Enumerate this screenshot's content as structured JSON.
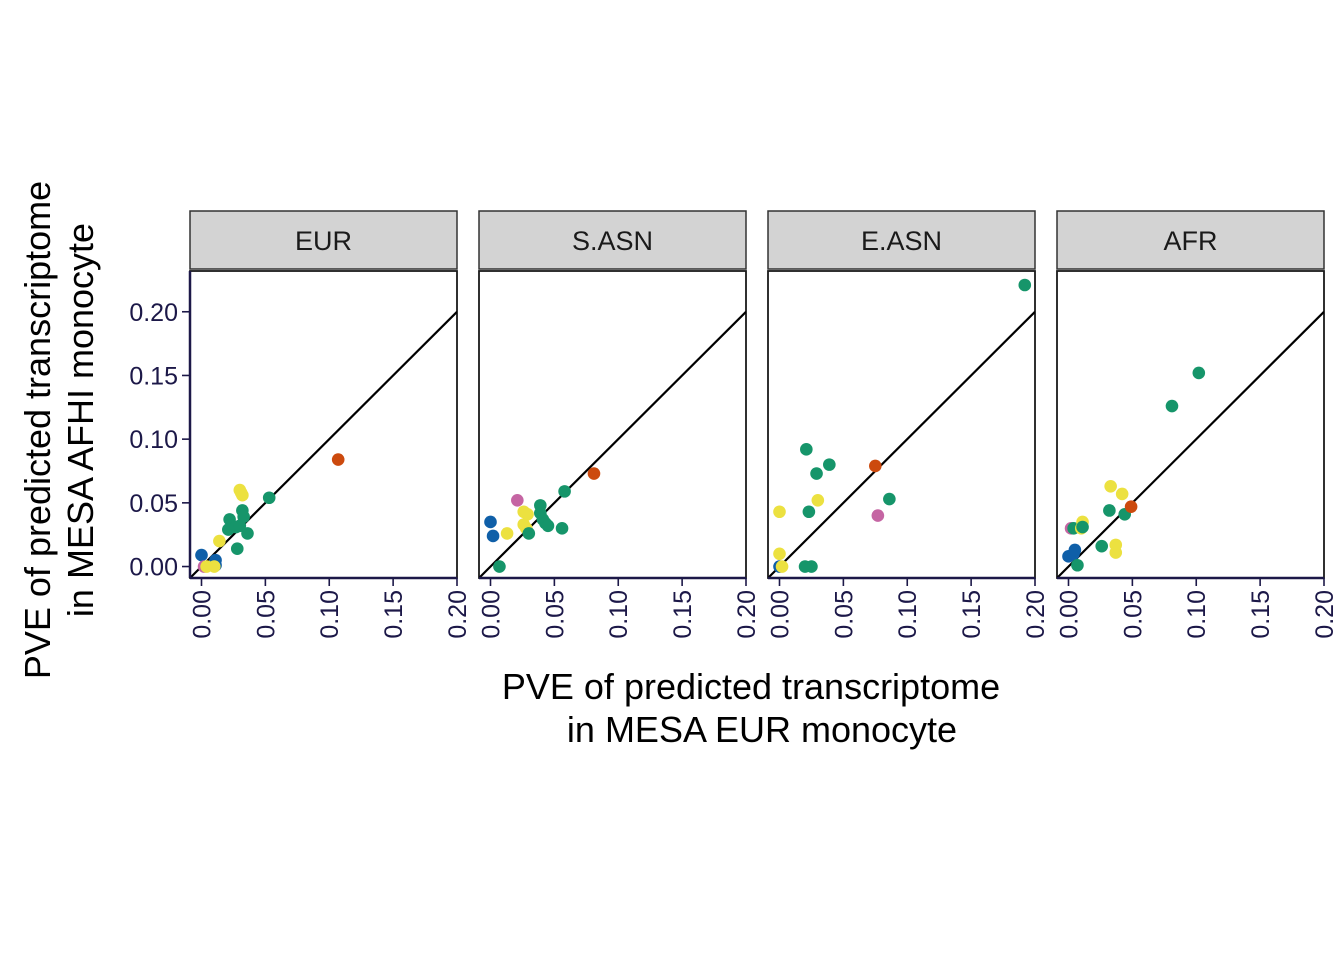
{
  "chart_data": {
    "type": "scatter",
    "facets": [
      "EUR",
      "S.ASN",
      "E.ASN",
      "AFR"
    ],
    "xlabel_lines": [
      "PVE of predicted transcriptome",
      "in MESA EUR monocyte"
    ],
    "ylabel_lines": [
      "PVE of predicted transcriptome",
      "in MESA AFHI monocyte"
    ],
    "xlim": [
      -0.009,
      0.2
    ],
    "ylim": [
      -0.009,
      0.232
    ],
    "xticks": [
      "0.00",
      "0.05",
      "0.10",
      "0.15",
      "0.20"
    ],
    "yticks": [
      "0.00",
      "0.05",
      "0.10",
      "0.15",
      "0.20"
    ],
    "xtick_values": [
      0,
      0.05,
      0.1,
      0.15,
      0.2
    ],
    "ytick_values": [
      0,
      0.05,
      0.1,
      0.15,
      0.2
    ],
    "reference_line": "y = x",
    "grid": false,
    "legend": "none",
    "colors": {
      "blue": "#0f5fa8",
      "green": "#16956a",
      "yellow": "#ece140",
      "orange": "#cc4a0e",
      "pink": "#c565a3",
      "strip_fill": "#d3d3d3",
      "axis_color": "#1c1848"
    },
    "panels": [
      {
        "facet": "EUR",
        "points": [
          {
            "x": 0.0,
            "y": 0.009,
            "c": "blue"
          },
          {
            "x": 0.011,
            "y": 0.005,
            "c": "blue"
          },
          {
            "x": 0.011,
            "y": 0.001,
            "c": "blue"
          },
          {
            "x": 0.002,
            "y": 0.0,
            "c": "pink"
          },
          {
            "x": 0.004,
            "y": 0.0,
            "c": "yellow"
          },
          {
            "x": 0.01,
            "y": 0.0,
            "c": "yellow"
          },
          {
            "x": 0.014,
            "y": 0.02,
            "c": "yellow"
          },
          {
            "x": 0.03,
            "y": 0.06,
            "c": "yellow"
          },
          {
            "x": 0.031,
            "y": 0.058,
            "c": "yellow"
          },
          {
            "x": 0.032,
            "y": 0.056,
            "c": "yellow"
          },
          {
            "x": 0.022,
            "y": 0.037,
            "c": "green"
          },
          {
            "x": 0.021,
            "y": 0.029,
            "c": "green"
          },
          {
            "x": 0.027,
            "y": 0.031,
            "c": "green"
          },
          {
            "x": 0.028,
            "y": 0.014,
            "c": "green"
          },
          {
            "x": 0.03,
            "y": 0.032,
            "c": "green"
          },
          {
            "x": 0.032,
            "y": 0.044,
            "c": "green"
          },
          {
            "x": 0.033,
            "y": 0.039,
            "c": "green"
          },
          {
            "x": 0.036,
            "y": 0.026,
            "c": "green"
          },
          {
            "x": 0.053,
            "y": 0.054,
            "c": "green"
          },
          {
            "x": 0.107,
            "y": 0.084,
            "c": "orange"
          }
        ]
      },
      {
        "facet": "S.ASN",
        "points": [
          {
            "x": 0.0,
            "y": 0.035,
            "c": "blue"
          },
          {
            "x": 0.002,
            "y": 0.024,
            "c": "blue"
          },
          {
            "x": 0.007,
            "y": 0.0,
            "c": "green"
          },
          {
            "x": 0.013,
            "y": 0.026,
            "c": "yellow"
          },
          {
            "x": 0.021,
            "y": 0.052,
            "c": "pink"
          },
          {
            "x": 0.026,
            "y": 0.043,
            "c": "yellow"
          },
          {
            "x": 0.026,
            "y": 0.033,
            "c": "yellow"
          },
          {
            "x": 0.028,
            "y": 0.03,
            "c": "yellow"
          },
          {
            "x": 0.029,
            "y": 0.041,
            "c": "yellow"
          },
          {
            "x": 0.03,
            "y": 0.026,
            "c": "green"
          },
          {
            "x": 0.039,
            "y": 0.048,
            "c": "green"
          },
          {
            "x": 0.039,
            "y": 0.042,
            "c": "green"
          },
          {
            "x": 0.041,
            "y": 0.037,
            "c": "green"
          },
          {
            "x": 0.043,
            "y": 0.034,
            "c": "green"
          },
          {
            "x": 0.045,
            "y": 0.032,
            "c": "green"
          },
          {
            "x": 0.056,
            "y": 0.03,
            "c": "green"
          },
          {
            "x": 0.058,
            "y": 0.059,
            "c": "green"
          },
          {
            "x": 0.081,
            "y": 0.073,
            "c": "orange"
          }
        ]
      },
      {
        "facet": "E.ASN",
        "points": [
          {
            "x": 0.0,
            "y": 0.0,
            "c": "blue"
          },
          {
            "x": 0.0,
            "y": 0.043,
            "c": "yellow"
          },
          {
            "x": 0.0,
            "y": 0.01,
            "c": "yellow"
          },
          {
            "x": 0.002,
            "y": 0.0,
            "c": "yellow"
          },
          {
            "x": 0.02,
            "y": 0.0,
            "c": "green"
          },
          {
            "x": 0.025,
            "y": 0.0,
            "c": "green"
          },
          {
            "x": 0.021,
            "y": 0.092,
            "c": "green"
          },
          {
            "x": 0.023,
            "y": 0.043,
            "c": "green"
          },
          {
            "x": 0.029,
            "y": 0.073,
            "c": "green"
          },
          {
            "x": 0.03,
            "y": 0.052,
            "c": "yellow"
          },
          {
            "x": 0.039,
            "y": 0.08,
            "c": "green"
          },
          {
            "x": 0.075,
            "y": 0.079,
            "c": "orange"
          },
          {
            "x": 0.077,
            "y": 0.04,
            "c": "pink"
          },
          {
            "x": 0.086,
            "y": 0.053,
            "c": "green"
          },
          {
            "x": 0.192,
            "y": 0.221,
            "c": "green"
          }
        ]
      },
      {
        "facet": "AFR",
        "points": [
          {
            "x": 0.0,
            "y": 0.008,
            "c": "blue"
          },
          {
            "x": 0.004,
            "y": 0.01,
            "c": "blue"
          },
          {
            "x": 0.005,
            "y": 0.013,
            "c": "blue"
          },
          {
            "x": 0.002,
            "y": 0.03,
            "c": "pink"
          },
          {
            "x": 0.004,
            "y": 0.03,
            "c": "green"
          },
          {
            "x": 0.007,
            "y": 0.001,
            "c": "green"
          },
          {
            "x": 0.01,
            "y": 0.03,
            "c": "yellow"
          },
          {
            "x": 0.011,
            "y": 0.035,
            "c": "yellow"
          },
          {
            "x": 0.011,
            "y": 0.031,
            "c": "green"
          },
          {
            "x": 0.026,
            "y": 0.016,
            "c": "green"
          },
          {
            "x": 0.032,
            "y": 0.044,
            "c": "green"
          },
          {
            "x": 0.033,
            "y": 0.063,
            "c": "yellow"
          },
          {
            "x": 0.037,
            "y": 0.017,
            "c": "yellow"
          },
          {
            "x": 0.037,
            "y": 0.011,
            "c": "yellow"
          },
          {
            "x": 0.042,
            "y": 0.057,
            "c": "yellow"
          },
          {
            "x": 0.044,
            "y": 0.041,
            "c": "green"
          },
          {
            "x": 0.049,
            "y": 0.047,
            "c": "orange"
          },
          {
            "x": 0.081,
            "y": 0.126,
            "c": "green"
          },
          {
            "x": 0.102,
            "y": 0.152,
            "c": "green"
          }
        ]
      }
    ]
  }
}
